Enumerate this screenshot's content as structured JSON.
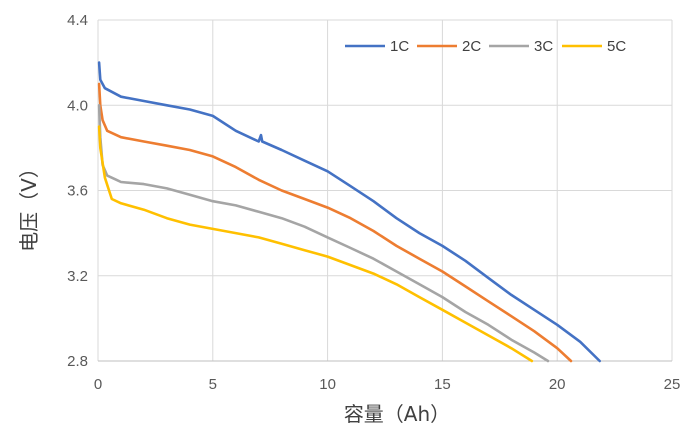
{
  "chart_data": {
    "type": "line",
    "title": "",
    "xlabel": "容量（Ah）",
    "ylabel": "电压（V）",
    "xlim": [
      0,
      25
    ],
    "ylim": [
      2.8,
      4.4
    ],
    "x_ticks": [
      "0",
      "5",
      "10",
      "15",
      "20",
      "25"
    ],
    "y_ticks": [
      "2.8",
      "3.2",
      "3.6",
      "4.0",
      "4.4"
    ],
    "grid": "vertical and horizontal",
    "legend_position": "top-right",
    "series": [
      {
        "name": "1C",
        "color": "#4472C4",
        "points": [
          [
            0.05,
            4.2
          ],
          [
            0.1,
            4.12
          ],
          [
            0.3,
            4.08
          ],
          [
            1,
            4.04
          ],
          [
            2,
            4.02
          ],
          [
            3,
            4.0
          ],
          [
            4,
            3.98
          ],
          [
            5,
            3.95
          ],
          [
            6,
            3.88
          ],
          [
            7.0,
            3.83
          ],
          [
            7.1,
            3.86
          ],
          [
            7.15,
            3.83
          ],
          [
            8,
            3.79
          ],
          [
            9,
            3.74
          ],
          [
            10,
            3.69
          ],
          [
            11,
            3.62
          ],
          [
            12,
            3.55
          ],
          [
            13,
            3.47
          ],
          [
            14,
            3.4
          ],
          [
            15,
            3.34
          ],
          [
            16,
            3.27
          ],
          [
            17,
            3.19
          ],
          [
            18,
            3.11
          ],
          [
            19,
            3.04
          ],
          [
            20,
            2.97
          ],
          [
            21,
            2.89
          ],
          [
            21.85,
            2.8
          ]
        ]
      },
      {
        "name": "2C",
        "color": "#ED7D31",
        "points": [
          [
            0.05,
            4.1
          ],
          [
            0.1,
            4.0
          ],
          [
            0.2,
            3.93
          ],
          [
            0.4,
            3.88
          ],
          [
            1,
            3.85
          ],
          [
            2,
            3.83
          ],
          [
            3,
            3.81
          ],
          [
            4,
            3.79
          ],
          [
            5,
            3.76
          ],
          [
            6,
            3.71
          ],
          [
            7,
            3.65
          ],
          [
            8,
            3.6
          ],
          [
            9,
            3.56
          ],
          [
            10,
            3.52
          ],
          [
            11,
            3.47
          ],
          [
            12,
            3.41
          ],
          [
            13,
            3.34
          ],
          [
            14,
            3.28
          ],
          [
            15,
            3.22
          ],
          [
            16,
            3.15
          ],
          [
            17,
            3.08
          ],
          [
            18,
            3.01
          ],
          [
            19,
            2.94
          ],
          [
            20,
            2.86
          ],
          [
            20.6,
            2.8
          ]
        ]
      },
      {
        "name": "3C",
        "color": "#A5A5A5",
        "points": [
          [
            0.05,
            4.0
          ],
          [
            0.1,
            3.85
          ],
          [
            0.2,
            3.72
          ],
          [
            0.4,
            3.67
          ],
          [
            0.8,
            3.65
          ],
          [
            1,
            3.64
          ],
          [
            2,
            3.63
          ],
          [
            3,
            3.61
          ],
          [
            4,
            3.58
          ],
          [
            5,
            3.55
          ],
          [
            6,
            3.53
          ],
          [
            7,
            3.5
          ],
          [
            8,
            3.47
          ],
          [
            9,
            3.43
          ],
          [
            10,
            3.38
          ],
          [
            11,
            3.33
          ],
          [
            12,
            3.28
          ],
          [
            13,
            3.22
          ],
          [
            14,
            3.16
          ],
          [
            15,
            3.1
          ],
          [
            16,
            3.03
          ],
          [
            17,
            2.97
          ],
          [
            18,
            2.9
          ],
          [
            19,
            2.84
          ],
          [
            19.6,
            2.8
          ]
        ]
      },
      {
        "name": "5C",
        "color": "#FFC000",
        "points": [
          [
            0.05,
            3.9
          ],
          [
            0.1,
            3.8
          ],
          [
            0.3,
            3.66
          ],
          [
            0.6,
            3.56
          ],
          [
            1,
            3.54
          ],
          [
            2,
            3.51
          ],
          [
            3,
            3.47
          ],
          [
            4,
            3.44
          ],
          [
            5,
            3.42
          ],
          [
            6,
            3.4
          ],
          [
            7,
            3.38
          ],
          [
            8,
            3.35
          ],
          [
            9,
            3.32
          ],
          [
            10,
            3.29
          ],
          [
            11,
            3.25
          ],
          [
            12,
            3.21
          ],
          [
            13,
            3.16
          ],
          [
            14,
            3.1
          ],
          [
            15,
            3.04
          ],
          [
            16,
            2.98
          ],
          [
            17,
            2.92
          ],
          [
            18,
            2.86
          ],
          [
            18.9,
            2.8
          ]
        ]
      }
    ]
  }
}
